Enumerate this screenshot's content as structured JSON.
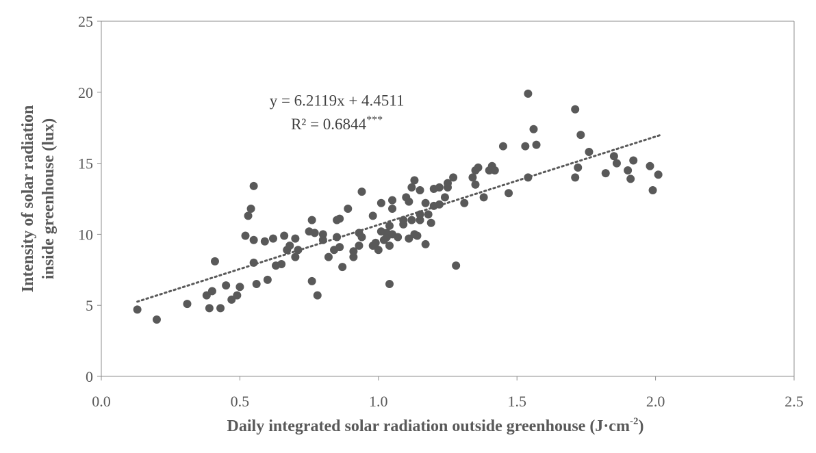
{
  "chart_data": {
    "type": "scatter",
    "xlabel": "Daily integrated solar radiation outside greenhouse (J·cm",
    "xlabel_sup": "-2",
    "xlabel_end": ")",
    "ylabel_line1": "Intensity of solar radiation",
    "ylabel_line2": "inside greenhouse (lux)",
    "xlim": [
      0,
      2.5
    ],
    "ylim": [
      0,
      25
    ],
    "x_ticks": [
      "0.0",
      "0.5",
      "1.0",
      "1.5",
      "2.0",
      "2.5"
    ],
    "y_ticks": [
      "0",
      "5",
      "10",
      "15",
      "20",
      "25"
    ],
    "grid": false,
    "marker_color": "#595959",
    "trendline": {
      "slope": 6.2119,
      "intercept": 4.4511,
      "x_range": [
        0.13,
        2.02
      ],
      "style": "dotted",
      "equation": "y = 6.2119x + 4.4511",
      "r2": "R² = 0.6844",
      "r2_sup": "***"
    },
    "points": [
      [
        0.13,
        4.7
      ],
      [
        0.2,
        4.0
      ],
      [
        0.31,
        5.1
      ],
      [
        0.38,
        5.7
      ],
      [
        0.39,
        4.8
      ],
      [
        0.4,
        6.0
      ],
      [
        0.41,
        8.1
      ],
      [
        0.43,
        4.8
      ],
      [
        0.45,
        6.4
      ],
      [
        0.47,
        5.4
      ],
      [
        0.49,
        5.7
      ],
      [
        0.5,
        6.3
      ],
      [
        0.52,
        9.9
      ],
      [
        0.53,
        11.3
      ],
      [
        0.54,
        11.8
      ],
      [
        0.55,
        9.6
      ],
      [
        0.55,
        8.0
      ],
      [
        0.55,
        13.4
      ],
      [
        0.56,
        6.5
      ],
      [
        0.59,
        9.5
      ],
      [
        0.6,
        6.8
      ],
      [
        0.62,
        9.7
      ],
      [
        0.63,
        7.8
      ],
      [
        0.65,
        7.9
      ],
      [
        0.66,
        9.9
      ],
      [
        0.67,
        8.9
      ],
      [
        0.68,
        9.2
      ],
      [
        0.7,
        9.7
      ],
      [
        0.7,
        8.4
      ],
      [
        0.71,
        8.9
      ],
      [
        0.75,
        10.2
      ],
      [
        0.76,
        11.0
      ],
      [
        0.76,
        6.7
      ],
      [
        0.77,
        10.1
      ],
      [
        0.78,
        5.7
      ],
      [
        0.8,
        10.0
      ],
      [
        0.8,
        9.6
      ],
      [
        0.82,
        8.4
      ],
      [
        0.84,
        8.9
      ],
      [
        0.85,
        9.8
      ],
      [
        0.85,
        11.0
      ],
      [
        0.86,
        11.1
      ],
      [
        0.86,
        9.1
      ],
      [
        0.87,
        7.7
      ],
      [
        0.89,
        11.8
      ],
      [
        0.91,
        8.8
      ],
      [
        0.91,
        8.4
      ],
      [
        0.93,
        9.2
      ],
      [
        0.93,
        10.1
      ],
      [
        0.94,
        13.0
      ],
      [
        0.94,
        9.8
      ],
      [
        0.98,
        9.2
      ],
      [
        0.98,
        11.3
      ],
      [
        0.99,
        9.4
      ],
      [
        1.0,
        8.9
      ],
      [
        1.01,
        12.2
      ],
      [
        1.01,
        10.2
      ],
      [
        1.02,
        9.6
      ],
      [
        1.03,
        10.1
      ],
      [
        1.03,
        9.8
      ],
      [
        1.04,
        9.2
      ],
      [
        1.04,
        6.5
      ],
      [
        1.04,
        10.6
      ],
      [
        1.05,
        11.8
      ],
      [
        1.05,
        12.4
      ],
      [
        1.05,
        10.0
      ],
      [
        1.07,
        9.8
      ],
      [
        1.09,
        10.7
      ],
      [
        1.09,
        11.0
      ],
      [
        1.1,
        12.6
      ],
      [
        1.11,
        9.7
      ],
      [
        1.11,
        12.3
      ],
      [
        1.12,
        11.0
      ],
      [
        1.12,
        13.3
      ],
      [
        1.13,
        13.8
      ],
      [
        1.13,
        10.0
      ],
      [
        1.14,
        9.9
      ],
      [
        1.15,
        11.0
      ],
      [
        1.15,
        11.4
      ],
      [
        1.15,
        13.1
      ],
      [
        1.17,
        9.3
      ],
      [
        1.17,
        12.2
      ],
      [
        1.18,
        11.4
      ],
      [
        1.19,
        10.8
      ],
      [
        1.2,
        12.0
      ],
      [
        1.2,
        13.2
      ],
      [
        1.22,
        12.1
      ],
      [
        1.22,
        13.3
      ],
      [
        1.24,
        12.6
      ],
      [
        1.25,
        13.6
      ],
      [
        1.25,
        13.3
      ],
      [
        1.27,
        14.0
      ],
      [
        1.28,
        7.8
      ],
      [
        1.31,
        12.2
      ],
      [
        1.34,
        14.0
      ],
      [
        1.35,
        14.5
      ],
      [
        1.35,
        13.5
      ],
      [
        1.36,
        14.7
      ],
      [
        1.38,
        12.6
      ],
      [
        1.4,
        14.5
      ],
      [
        1.41,
        14.8
      ],
      [
        1.42,
        14.5
      ],
      [
        1.45,
        16.2
      ],
      [
        1.47,
        12.9
      ],
      [
        1.53,
        16.2
      ],
      [
        1.54,
        19.9
      ],
      [
        1.54,
        14.0
      ],
      [
        1.56,
        17.4
      ],
      [
        1.57,
        16.3
      ],
      [
        1.71,
        18.8
      ],
      [
        1.71,
        14.0
      ],
      [
        1.72,
        14.7
      ],
      [
        1.73,
        17.0
      ],
      [
        1.76,
        15.8
      ],
      [
        1.82,
        14.3
      ],
      [
        1.85,
        15.5
      ],
      [
        1.86,
        15.0
      ],
      [
        1.9,
        14.5
      ],
      [
        1.91,
        13.9
      ],
      [
        1.92,
        15.2
      ],
      [
        1.98,
        14.8
      ],
      [
        1.99,
        13.1
      ],
      [
        2.01,
        14.2
      ]
    ]
  }
}
